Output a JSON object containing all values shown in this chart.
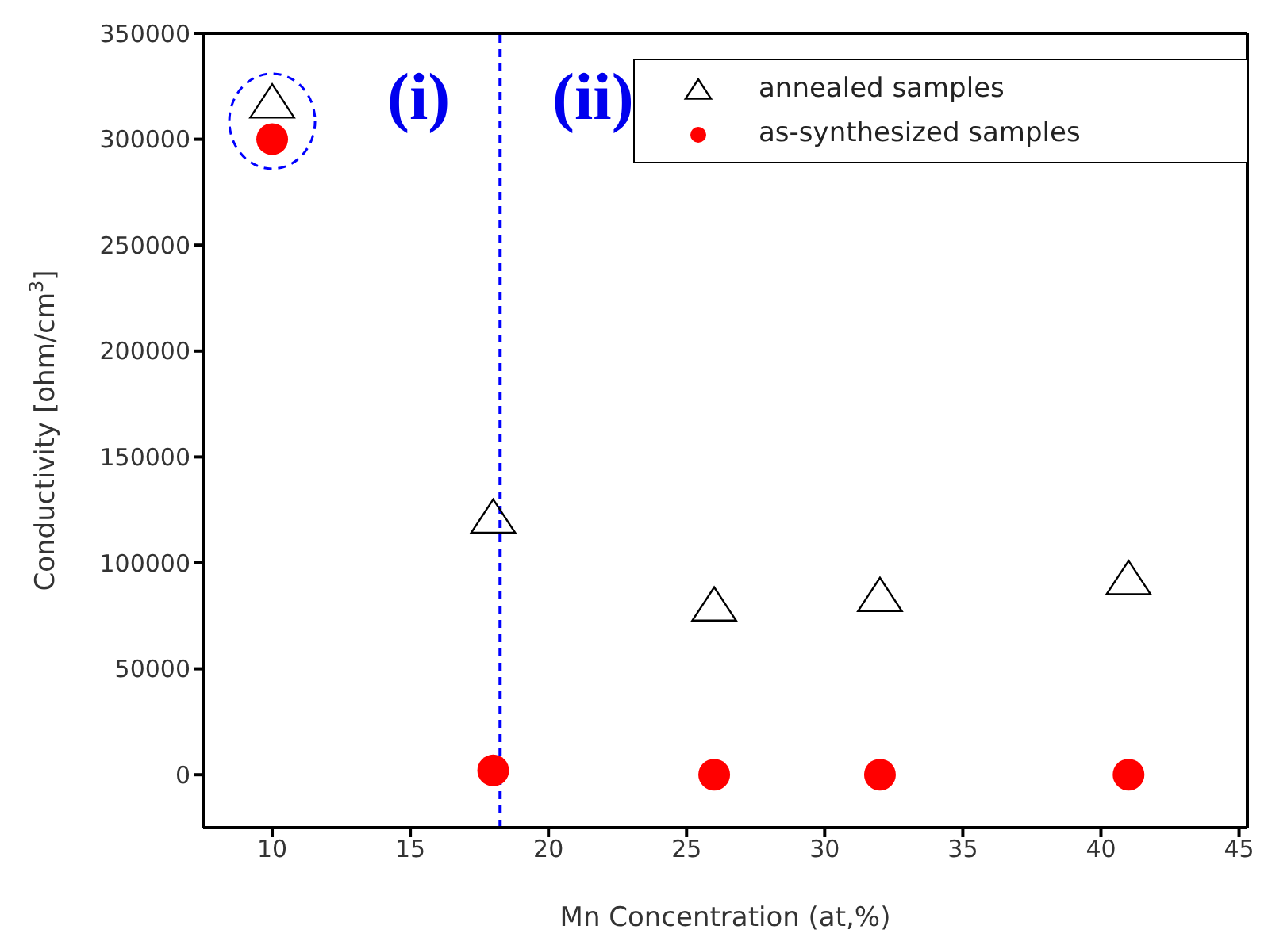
{
  "chart_data": {
    "type": "scatter",
    "xlabel": "Mn Concentration (at,%)",
    "ylabel": "Conductivity [ohm/cm$^{3}$]",
    "xlim": [
      7.5,
      45.3
    ],
    "xticks": [
      10,
      15,
      20,
      25,
      30,
      35,
      40,
      45
    ],
    "ylim": [
      -25000,
      350000
    ],
    "yticks": [
      0,
      50000,
      100000,
      150000,
      200000,
      250000,
      300000,
      350000
    ],
    "x": [
      10,
      18,
      26,
      32,
      41
    ],
    "series": [
      {
        "name": "annealed samples",
        "color": "#000000",
        "marker": "triangle",
        "values": [
          317000,
          121000,
          79500,
          84000,
          92000
        ]
      },
      {
        "name": "as-synthesized samples",
        "color": "#ff0000",
        "marker": "circle",
        "values": [
          300000,
          2000,
          0,
          0,
          0
        ]
      }
    ],
    "ref_lines": [
      {
        "axis": "x",
        "value": 18.25,
        "color": "#0000ff",
        "line_style": "dashed"
      }
    ],
    "annotations": [
      "(i)",
      "(ii)"
    ],
    "legend": "top right",
    "grid": false
  }
}
